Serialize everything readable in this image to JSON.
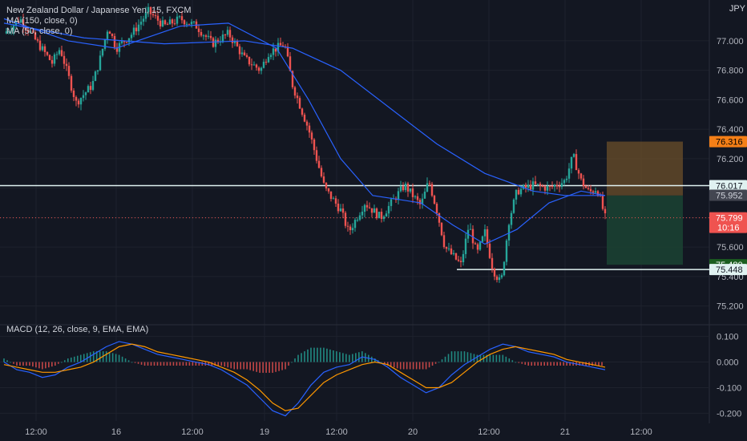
{
  "legend": {
    "title": "New Zealand Dollar / Japanese Yen, 15, FXCM",
    "ma1": "MA (150, close, 0)",
    "ma2": "MA (50, close, 0)",
    "macd": "MACD (12, 26, close, 9, EMA, EMA)"
  },
  "currency": "JPY",
  "colors": {
    "background": "#131722",
    "grid": "#1e222d",
    "up": "#26a69a",
    "down": "#ef5350",
    "ma": "#2962ff",
    "signal": "#ff9800",
    "level": "#e0f2f1",
    "stop_zone": "#6b4f2a",
    "target_zone": "#1b4332"
  },
  "chart_data": [
    {
      "type": "candlestick",
      "yaxis_ticks": [
        "77.000",
        "76.800",
        "76.600",
        "76.400",
        "76.200",
        "76.000",
        "75.800",
        "75.600",
        "75.400",
        "75.200"
      ],
      "ylim": [
        75.1,
        77.25
      ],
      "xaxis_ticks": [
        "12:00",
        "16",
        "12:00",
        "19",
        "12:00",
        "20",
        "12:00",
        "21",
        "12:00"
      ],
      "price_labels": [
        {
          "value": "76.316",
          "kind": "stop"
        },
        {
          "value": "76.017",
          "kind": "level"
        },
        {
          "value": "75.952",
          "kind": "ma"
        },
        {
          "value": "75.799",
          "kind": "last",
          "countdown": "10:16"
        },
        {
          "value": "75.480",
          "kind": "target"
        },
        {
          "value": "75.448",
          "kind": "level"
        }
      ],
      "horizontal_levels": [
        76.017,
        75.448
      ],
      "last_price": 75.799,
      "position": {
        "entry": 75.95,
        "stop": 76.316,
        "target": 75.48
      },
      "series": [
        {
          "kind": "price",
          "path_points": [
            [
              0,
              77.05
            ],
            [
              2,
              77.15
            ],
            [
              4,
              77.0
            ],
            [
              6,
              76.85
            ],
            [
              7,
              76.95
            ],
            [
              9,
              76.58
            ],
            [
              11,
              76.7
            ],
            [
              12,
              76.88
            ],
            [
              13,
              77.1
            ],
            [
              14,
              76.95
            ],
            [
              15,
              77.0
            ],
            [
              16,
              77.05
            ],
            [
              18,
              77.2
            ],
            [
              20,
              77.1
            ],
            [
              22,
              77.15
            ],
            [
              24,
              77.1
            ],
            [
              26,
              76.98
            ],
            [
              28,
              77.05
            ],
            [
              30,
              76.88
            ],
            [
              32,
              76.8
            ],
            [
              33,
              76.92
            ],
            [
              35,
              76.98
            ],
            [
              36,
              76.7
            ],
            [
              38,
              76.4
            ],
            [
              40,
              76.0
            ],
            [
              42,
              75.85
            ],
            [
              43,
              75.7
            ],
            [
              45,
              75.9
            ],
            [
              47,
              75.8
            ],
            [
              49,
              75.95
            ],
            [
              50,
              76.02
            ],
            [
              52,
              75.88
            ],
            [
              53,
              76.05
            ],
            [
              54,
              75.85
            ],
            [
              55,
              75.6
            ],
            [
              57,
              75.48
            ],
            [
              58,
              75.75
            ],
            [
              59,
              75.55
            ],
            [
              60,
              75.7
            ],
            [
              61,
              75.45
            ],
            [
              62,
              75.35
            ],
            [
              63,
              75.78
            ],
            [
              64,
              75.98
            ],
            [
              66,
              76.02
            ],
            [
              68,
              76.0
            ],
            [
              70,
              76.05
            ],
            [
              71,
              76.22
            ],
            [
              72,
              76.05
            ],
            [
              73,
              75.97
            ],
            [
              74,
              76.0
            ],
            [
              75,
              75.8
            ]
          ]
        },
        {
          "kind": "ma150",
          "path_points": [
            [
              0,
              77.12
            ],
            [
              10,
              77.02
            ],
            [
              20,
              76.98
            ],
            [
              30,
              77.0
            ],
            [
              36,
              76.95
            ],
            [
              42,
              76.8
            ],
            [
              48,
              76.55
            ],
            [
              54,
              76.3
            ],
            [
              60,
              76.1
            ],
            [
              66,
              75.98
            ],
            [
              70,
              75.95
            ],
            [
              75,
              75.95
            ]
          ]
        },
        {
          "kind": "ma50",
          "path_points": [
            [
              0,
              77.15
            ],
            [
              8,
              77.0
            ],
            [
              14,
              76.95
            ],
            [
              22,
              77.1
            ],
            [
              28,
              77.12
            ],
            [
              34,
              76.95
            ],
            [
              38,
              76.6
            ],
            [
              42,
              76.2
            ],
            [
              46,
              75.95
            ],
            [
              52,
              75.9
            ],
            [
              56,
              75.75
            ],
            [
              60,
              75.62
            ],
            [
              64,
              75.72
            ],
            [
              68,
              75.9
            ],
            [
              72,
              75.98
            ],
            [
              75,
              75.95
            ]
          ]
        }
      ]
    },
    {
      "type": "macd",
      "title": "MACD (12, 26, close, 9, EMA, EMA)",
      "yaxis_ticks": [
        "0.100",
        "0.000",
        "-0.100",
        "-0.200"
      ],
      "ylim": [
        -0.23,
        0.13
      ],
      "macd": [
        0.0,
        -0.03,
        -0.04,
        -0.06,
        -0.05,
        -0.02,
        0.0,
        0.03,
        0.06,
        0.08,
        0.07,
        0.05,
        0.03,
        0.02,
        0.01,
        0.0,
        -0.01,
        -0.03,
        -0.06,
        -0.09,
        -0.14,
        -0.19,
        -0.21,
        -0.16,
        -0.09,
        -0.04,
        -0.02,
        -0.01,
        0.02,
        0.01,
        -0.02,
        -0.06,
        -0.09,
        -0.12,
        -0.1,
        -0.05,
        -0.01,
        0.02,
        0.05,
        0.07,
        0.06,
        0.04,
        0.03,
        0.02,
        0.0,
        -0.01,
        -0.02,
        -0.03
      ],
      "signal": [
        -0.01,
        -0.02,
        -0.03,
        -0.04,
        -0.04,
        -0.03,
        -0.02,
        0.0,
        0.03,
        0.06,
        0.07,
        0.06,
        0.04,
        0.03,
        0.02,
        0.01,
        0.0,
        -0.02,
        -0.04,
        -0.07,
        -0.11,
        -0.16,
        -0.19,
        -0.18,
        -0.13,
        -0.08,
        -0.05,
        -0.03,
        -0.01,
        0.0,
        -0.01,
        -0.04,
        -0.07,
        -0.1,
        -0.1,
        -0.08,
        -0.04,
        0.0,
        0.03,
        0.05,
        0.06,
        0.05,
        0.04,
        0.03,
        0.01,
        0.0,
        -0.01,
        -0.02
      ]
    }
  ]
}
